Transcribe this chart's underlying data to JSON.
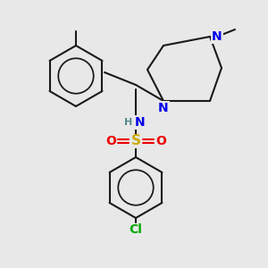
{
  "background_color": "#e8e8e8",
  "bond_color": "#1a1a1a",
  "bond_width": 1.5,
  "N_color": "#0000ee",
  "S_color": "#ccaa00",
  "O_color": "#ee0000",
  "Cl_color": "#00aa00",
  "H_color": "#5a8a8a",
  "font_size": 9,
  "fig_w": 3.0,
  "fig_h": 3.0,
  "dpi": 100,
  "xlim": [
    0,
    300
  ],
  "ylim": [
    0,
    300
  ]
}
